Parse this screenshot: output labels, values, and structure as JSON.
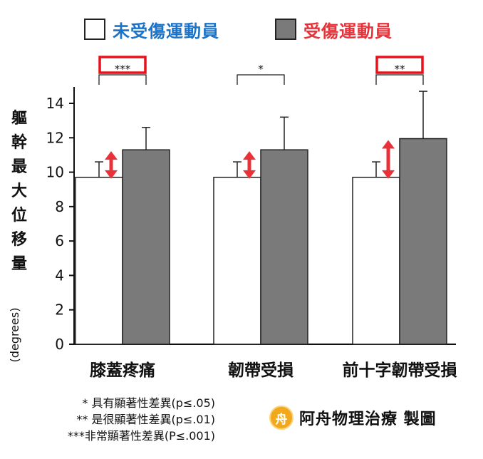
{
  "legend": [
    {
      "label": "未受傷運動員",
      "color": "#ffffff",
      "text_color": "#1a73c9"
    },
    {
      "label": "受傷運動員",
      "color": "#7a7a7a",
      "text_color": "#e8323a"
    }
  ],
  "chart_data": {
    "type": "bar",
    "categories": [
      "膝蓋疼痛",
      "韌帶受損",
      "前十字韌帶受損"
    ],
    "series": [
      {
        "name": "未受傷運動員",
        "values": [
          9.7,
          9.7,
          9.7
        ],
        "error": [
          0.9,
          0.9,
          0.9
        ],
        "color": "#ffffff"
      },
      {
        "name": "受傷運動員",
        "values": [
          11.3,
          11.3,
          11.95
        ],
        "error": [
          1.3,
          1.9,
          2.75
        ],
        "color": "#7a7a7a"
      }
    ],
    "significance": [
      "***",
      "*",
      "**"
    ],
    "highlighted_significance": [
      true,
      false,
      true
    ],
    "ylabel": "軀幹最大位移量",
    "yunit": "(degrees)",
    "ylim": [
      0,
      15
    ],
    "yticks": [
      0,
      2,
      4,
      6,
      8,
      10,
      12,
      14
    ],
    "xlabel": "",
    "title": ""
  },
  "footnotes": [
    "* 具有顯著性差異(p≤.05)",
    "** 是很顯著性差異(p≤.01)",
    "***非常顯著性差異(P≤.001)"
  ],
  "credit": {
    "logo_char": "舟",
    "text": "阿舟物理治療 製圖"
  },
  "colors": {
    "axis": "#111111",
    "arrow": "#e8323a",
    "highlight_box": "#e8101a",
    "bar_border": "#222222"
  }
}
